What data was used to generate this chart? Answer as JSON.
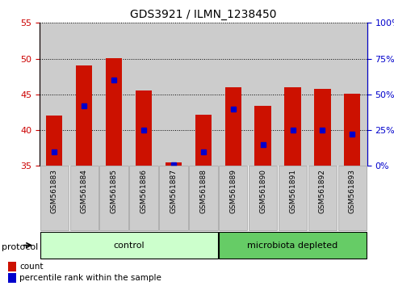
{
  "title": "GDS3921 / ILMN_1238450",
  "samples": [
    "GSM561883",
    "GSM561884",
    "GSM561885",
    "GSM561886",
    "GSM561887",
    "GSM561888",
    "GSM561889",
    "GSM561890",
    "GSM561891",
    "GSM561892",
    "GSM561893"
  ],
  "count_values": [
    42.0,
    49.0,
    50.1,
    45.5,
    35.5,
    42.2,
    46.0,
    43.4,
    46.0,
    45.8,
    45.1
  ],
  "percentile_values": [
    10,
    42,
    60,
    25,
    1,
    10,
    40,
    15,
    25,
    25,
    22
  ],
  "bar_bottom": 35,
  "ylim_left": [
    35,
    55
  ],
  "ylim_right": [
    0,
    100
  ],
  "yticks_left": [
    35,
    40,
    45,
    50,
    55
  ],
  "yticks_right": [
    0,
    25,
    50,
    75,
    100
  ],
  "left_tick_color": "#cc0000",
  "right_tick_color": "#0000cc",
  "bar_color": "#cc1100",
  "marker_color": "#0000cc",
  "grid_color": "#000000",
  "n_control": 6,
  "n_micro": 5,
  "control_label": "control",
  "microbiota_label": "microbiota depleted",
  "protocol_label": "protocol",
  "legend_count": "count",
  "legend_percentile": "percentile rank within the sample",
  "control_bg": "#ccffcc",
  "microbiota_bg": "#66cc66",
  "sample_bg": "#cccccc",
  "bar_width": 0.55
}
